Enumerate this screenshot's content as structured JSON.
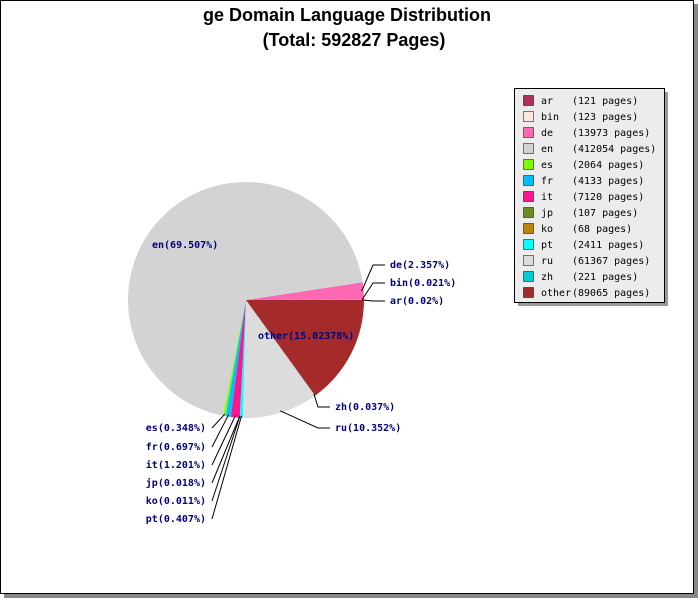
{
  "chart_data": {
    "type": "pie",
    "title": "ge Domain Language Distribution",
    "subtitle": "(Total: 592827 Pages)",
    "categories": [
      "ar",
      "bin",
      "de",
      "en",
      "es",
      "fr",
      "it",
      "jp",
      "ko",
      "pt",
      "ru",
      "zh",
      "other"
    ],
    "values": [
      121,
      123,
      13973,
      412054,
      2064,
      4133,
      7120,
      107,
      68,
      2411,
      61367,
      221,
      89065
    ],
    "value_labels": [
      "ar(0.02%)",
      "bin(0.021%)",
      "de(2.357%)",
      "en(69.507%)",
      "es(0.348%)",
      "fr(0.697%)",
      "it(1.201%)",
      "jp(0.018%)",
      "ko(0.011%)",
      "pt(0.407%)",
      "ru(10.352%)",
      "zh(0.037%)",
      "other(15.02378%)"
    ],
    "legend_labels": [
      "(121 pages)",
      "(123 pages)",
      "(13973 pages)",
      "(412054 pages)",
      "(2064 pages)",
      "(4133 pages)",
      "(7120 pages)",
      "(107 pages)",
      "(68 pages)",
      "(2411 pages)",
      "(61367 pages)",
      "(221 pages)",
      "(89065 pages)"
    ],
    "colors": [
      "#b03060",
      "#f8e8e0",
      "#ff69b4",
      "#d3d3d3",
      "#7cfc00",
      "#00bfff",
      "#ff1493",
      "#6b8e23",
      "#b8860b",
      "#00ffff",
      "#dcdcdc",
      "#00ced1",
      "#a52a2a"
    ],
    "legend": "upper right"
  }
}
